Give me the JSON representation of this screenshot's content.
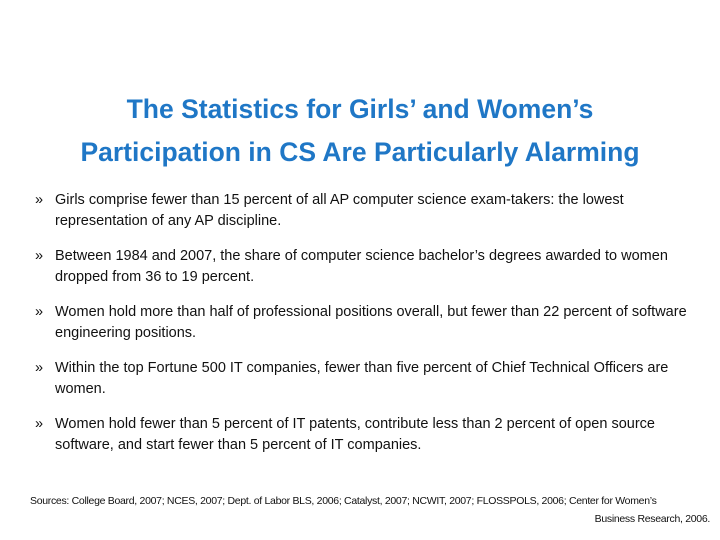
{
  "slide": {
    "title_line1": "The Statistics for Girls’ and Women’s",
    "title_line2": "Participation in CS Are Particularly Alarming",
    "bullet_marker": "»",
    "bullets": [
      "Girls comprise fewer than 15 percent of all AP computer science exam-takers: the lowest representation of any AP discipline.",
      "Between 1984 and 2007, the share of computer science bachelor’s degrees awarded to women dropped from 36 to 19 percent.",
      "Women hold more than half of professional positions overall, but fewer than 22 percent of software engineering positions.",
      "Within the top Fortune 500 IT companies, fewer than five percent of Chief Technical Officers are women.",
      "Women hold fewer than 5 percent of IT patents, contribute less than 2 percent of open source software, and start fewer than 5 percent of IT companies."
    ],
    "sources_line1": "Sources: College Board, 2007; NCES, 2007; Dept. of Labor BLS, 2006; Catalyst, 2007; NCWIT, 2007; FLOSSPOLS, 2006; Center for Women’s",
    "sources_line2": "Business Research, 2006."
  }
}
